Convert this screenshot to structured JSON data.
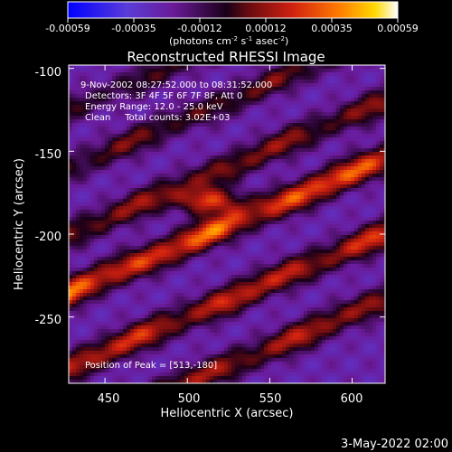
{
  "colorbar": {
    "tick_labels": [
      "-0.00059",
      "-0.00035",
      "-0.00012",
      "0.00012",
      "0.00035",
      "0.00059"
    ],
    "units_prefix": "(photons cm",
    "units_sup1": "-2",
    "units_mid1": " s",
    "units_sup2": "-1",
    "units_mid2": " asec",
    "units_sup3": "-2",
    "units_suffix": ")"
  },
  "chart_data": {
    "type": "heatmap",
    "title": "Reconstructed RHESSI Image",
    "xlabel": "Heliocentric X (arcsec)",
    "ylabel": "Heliocentric Y (arcsec)",
    "xlim": [
      428,
      620
    ],
    "ylim": [
      -290,
      -98
    ],
    "x_ticks": [
      450,
      500,
      550,
      600
    ],
    "y_ticks": [
      -100,
      -150,
      -200,
      -250
    ],
    "color_range": [
      -0.00059,
      0.00059
    ],
    "colormap": [
      "#0000ff",
      "#6a3cc8",
      "#5a1a8c",
      "#1a0020",
      "#b01818",
      "#ff6a00",
      "#ffc000",
      "#ffffff"
    ],
    "annotations": [
      "9-Nov-2002 08:27:52.000 to 08:31:52.000",
      "Detectors: 3F 4F 5F 6F 7F 8F, Att 0",
      "Energy Range: 12.0 - 25.0 keV",
      "Clean     Total counts: 3.02E+03"
    ],
    "peak_label": "Position of Peak = [513,-180]",
    "peak": {
      "x": 513,
      "y": -180
    },
    "bands": [
      {
        "intercept": -170,
        "amplitude": 0.0003
      },
      {
        "intercept": -205,
        "amplitude": 0.0005
      },
      {
        "intercept": -250,
        "amplitude": 0.0004
      },
      {
        "intercept": -290,
        "amplitude": 0.00035
      },
      {
        "intercept": -130,
        "amplitude": 0.00025
      },
      {
        "intercept": -95,
        "amplitude": 0.0002
      }
    ],
    "band_slope": 0.42
  },
  "footer": {
    "timestamp": "3-May-2022 02:00"
  }
}
